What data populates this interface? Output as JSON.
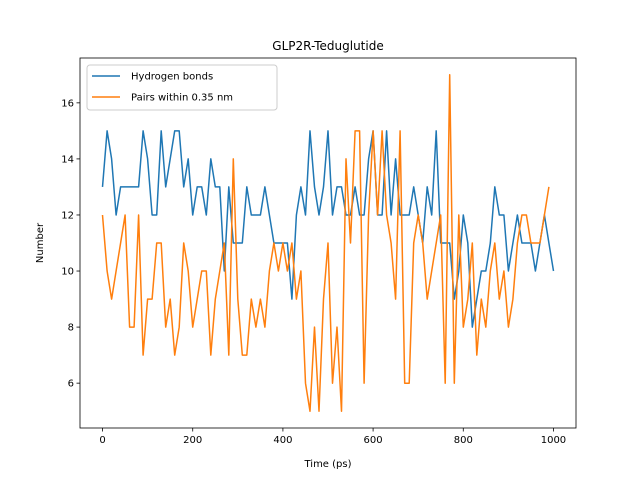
{
  "chart_data": {
    "type": "line",
    "title": "GLP2R-Teduglutide",
    "xlabel": "Time (ps)",
    "ylabel": "Number",
    "xlim": [
      -50,
      1050
    ],
    "ylim": [
      4.4,
      17.6
    ],
    "xticks": [
      0,
      200,
      400,
      600,
      800,
      1000
    ],
    "yticks": [
      6,
      8,
      10,
      12,
      14,
      16
    ],
    "grid": false,
    "legend_position": "top-left",
    "x": [
      0,
      10,
      20,
      30,
      40,
      50,
      60,
      70,
      80,
      90,
      100,
      110,
      120,
      130,
      140,
      150,
      160,
      170,
      180,
      190,
      200,
      210,
      220,
      230,
      240,
      250,
      260,
      270,
      280,
      290,
      300,
      310,
      320,
      330,
      340,
      350,
      360,
      370,
      380,
      390,
      400,
      410,
      420,
      430,
      440,
      450,
      460,
      470,
      480,
      490,
      500,
      510,
      520,
      530,
      540,
      550,
      560,
      570,
      580,
      590,
      600,
      610,
      620,
      630,
      640,
      650,
      660,
      670,
      680,
      690,
      700,
      710,
      720,
      730,
      740,
      750,
      760,
      770,
      780,
      790,
      800,
      810,
      820,
      830,
      840,
      850,
      860,
      870,
      880,
      890,
      900,
      910,
      920,
      930,
      940,
      950,
      960,
      970,
      980,
      990,
      1000
    ],
    "series": [
      {
        "name": "Hydrogen bonds",
        "color": "#1f77b4",
        "values": [
          13,
          15,
          14,
          12,
          13,
          13,
          13,
          13,
          13,
          15,
          14,
          12,
          12,
          15,
          13,
          14,
          15,
          15,
          13,
          14,
          12,
          13,
          13,
          12,
          14,
          13,
          13,
          10,
          13,
          11,
          11,
          11,
          13,
          12,
          12,
          12,
          13,
          12,
          11,
          11,
          11,
          11,
          9,
          12,
          13,
          12,
          15,
          13,
          12,
          13,
          15,
          12,
          13,
          13,
          12,
          12,
          13,
          12,
          12,
          14,
          15,
          12,
          12,
          15,
          12,
          14,
          12,
          12,
          12,
          13,
          12,
          11,
          13,
          12,
          15,
          11,
          11,
          11,
          9,
          10,
          12,
          11,
          8,
          9,
          10,
          10,
          11,
          13,
          12,
          12,
          10,
          11,
          12,
          11,
          11,
          11,
          10,
          11,
          12,
          11,
          10
        ]
      },
      {
        "name": "Pairs within 0.35 nm",
        "color": "#ff7f0e",
        "values": [
          12,
          10,
          9,
          10,
          11,
          12,
          8,
          8,
          12,
          7,
          9,
          9,
          11,
          11,
          8,
          9,
          7,
          8,
          11,
          10,
          8,
          9,
          10,
          10,
          7,
          9,
          10,
          11,
          7,
          14,
          9,
          7,
          7,
          9,
          8,
          9,
          8,
          10,
          11,
          10,
          11,
          10,
          11,
          9,
          10,
          6,
          5,
          8,
          5,
          9,
          11,
          6,
          8,
          5,
          14,
          11,
          15,
          15,
          6,
          12,
          15,
          12,
          15,
          12,
          11,
          9,
          15,
          6,
          6,
          11,
          12,
          11,
          9,
          10,
          11,
          12,
          6,
          17,
          6,
          12,
          8,
          9,
          11,
          7,
          9,
          8,
          10,
          11,
          9,
          10,
          8,
          9,
          11,
          12,
          12,
          11,
          11,
          11,
          12,
          13,
          null
        ]
      }
    ]
  }
}
